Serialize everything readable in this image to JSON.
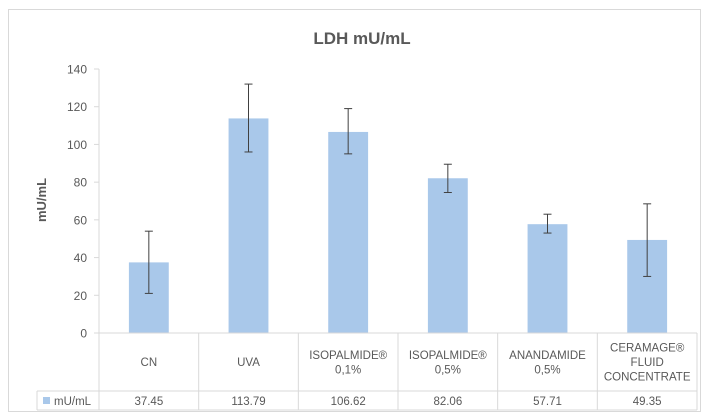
{
  "chart_data": {
    "type": "bar",
    "title": "LDH mU/mL",
    "ylabel": "mU/mL",
    "xlabel": "",
    "ylim": [
      0,
      140
    ],
    "yticks": [
      0,
      20,
      40,
      60,
      80,
      100,
      120,
      140
    ],
    "grid": false,
    "legend_placement": "data-table",
    "categories": [
      [
        "CN"
      ],
      [
        "UVA"
      ],
      [
        "ISOPALMIDE®",
        "0,1%"
      ],
      [
        "ISOPALMIDE®",
        "0,5%"
      ],
      [
        "ANANDAMIDE",
        "0,5%"
      ],
      [
        "CERAMAGE®",
        "FLUID",
        "CONCENTRATE"
      ]
    ],
    "series": [
      {
        "name": "mU/mL",
        "color": "#a9c8ea",
        "values": [
          37.45,
          113.79,
          106.62,
          82.06,
          57.71,
          49.35
        ],
        "value_labels": [
          "37.45",
          "113.79",
          "106.62",
          "82.06",
          "57.71",
          "49.35"
        ],
        "error_low": [
          21,
          96,
          95,
          74.5,
          53,
          30
        ],
        "error_high": [
          54,
          132,
          119,
          89.5,
          63,
          68.5
        ]
      }
    ]
  }
}
